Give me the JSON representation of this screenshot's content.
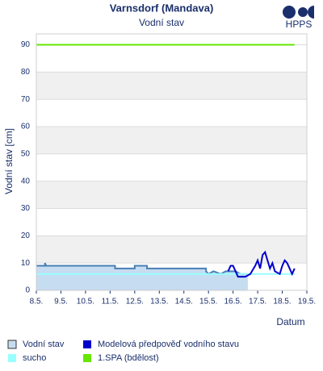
{
  "chart_data": {
    "type": "line",
    "title": "Varnsdorf (Mandava)",
    "subtitle": "Vodní stav",
    "logo_text": "HPPS",
    "y_label": "Vodní stav [cm]",
    "x_label": "Datum",
    "xlim": [
      8,
      19
    ],
    "xticks": [
      {
        "value": 8,
        "label": "8.5."
      },
      {
        "value": 9,
        "label": "9.5."
      },
      {
        "value": 10,
        "label": "10.5."
      },
      {
        "value": 11,
        "label": "11.5."
      },
      {
        "value": 12,
        "label": "12.5."
      },
      {
        "value": 13,
        "label": "13.5."
      },
      {
        "value": 14,
        "label": "14.5."
      },
      {
        "value": 15,
        "label": "15.5."
      },
      {
        "value": 16,
        "label": "16.5."
      },
      {
        "value": 17,
        "label": "17.5."
      },
      {
        "value": 18,
        "label": "18.5."
      },
      {
        "value": 19,
        "label": "19.5."
      }
    ],
    "ylim": [
      0,
      94
    ],
    "yticks": [
      0,
      10,
      20,
      30,
      40,
      50,
      60,
      70,
      80,
      90
    ],
    "grid": true,
    "series": [
      {
        "name": "Vodní stav",
        "kind": "area",
        "color": "#4a7fb5",
        "fill": "#c6dcf0",
        "x": [
          8,
          8.35,
          8.35,
          8.4,
          11.2,
          11.2,
          12,
          12,
          12.5,
          12.5,
          14.9,
          14.9,
          15.0,
          15.2,
          15.5,
          15.7,
          16.1,
          16.3,
          16.6
        ],
        "values": [
          9,
          9,
          10,
          9,
          9,
          8,
          8,
          9,
          9,
          8,
          8,
          7,
          6,
          7,
          6,
          7,
          7,
          6,
          6
        ]
      },
      {
        "name": "sucho",
        "kind": "line",
        "color": "#99ffff",
        "x": [
          8,
          18.5
        ],
        "values": [
          6,
          6
        ]
      },
      {
        "name": "Modelová předpověď vodního stavu",
        "kind": "line",
        "color": "#0000cc",
        "x": [
          15.8,
          15.9,
          16.0,
          16.1,
          16.2,
          16.5,
          16.7,
          16.9,
          17.0,
          17.1,
          17.2,
          17.3,
          17.4,
          17.5,
          17.6,
          17.7,
          17.9,
          18.0,
          18.1,
          18.2,
          18.3,
          18.4,
          18.5
        ],
        "values": [
          7,
          9,
          9,
          7,
          5,
          5,
          6,
          9,
          11,
          8,
          13,
          14,
          11,
          8,
          10,
          7,
          6,
          9,
          11,
          10,
          8,
          6,
          8
        ]
      },
      {
        "name": "1.SPA (bdělost)",
        "kind": "line",
        "color": "#66e600",
        "x": [
          8,
          18.5
        ],
        "values": [
          90,
          90
        ]
      }
    ]
  }
}
